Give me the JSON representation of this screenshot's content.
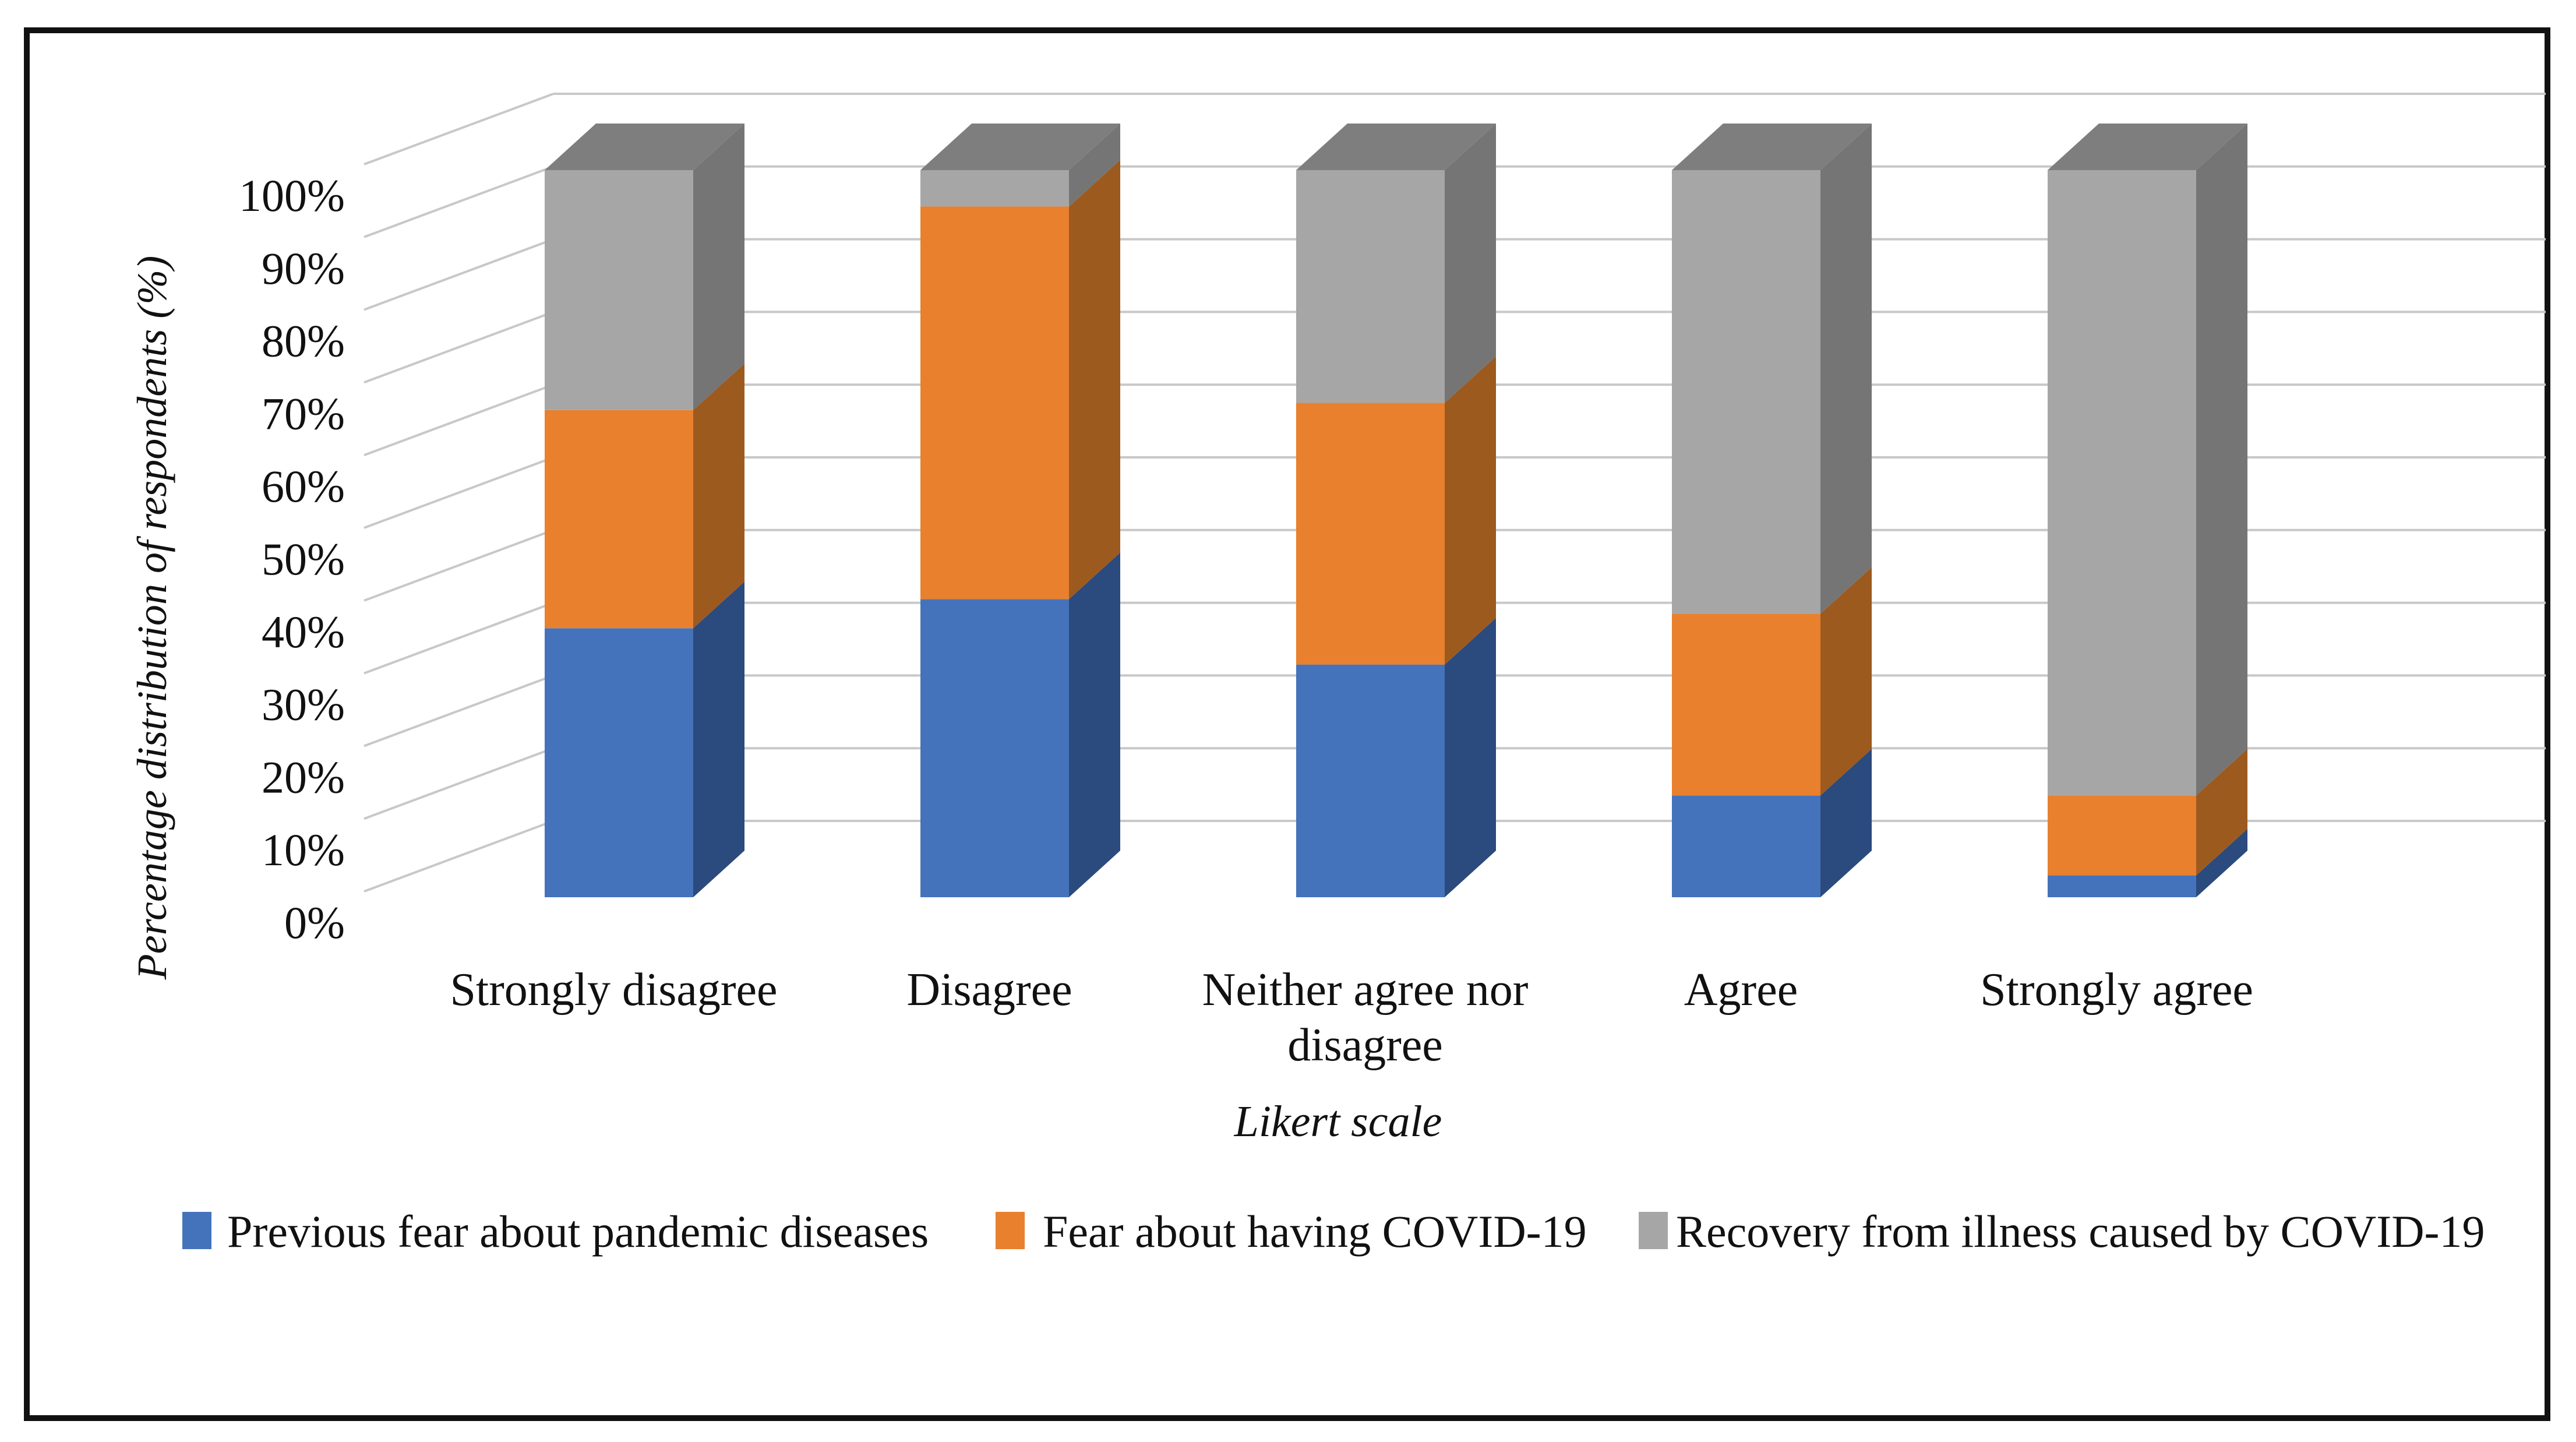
{
  "chart_data": {
    "type": "bar",
    "subtype": "3d-stacked-percent-column",
    "title": "",
    "categories": [
      "Strongly disagree",
      "Disagree",
      "Neither agree nor disagree",
      "Agree",
      "Strongly agree"
    ],
    "category_lines": [
      [
        "Strongly disagree"
      ],
      [
        "Disagree"
      ],
      [
        "Neither agree nor",
        "disagree"
      ],
      [
        "Agree"
      ],
      [
        "Strongly agree"
      ]
    ],
    "series": [
      {
        "name": "Previous fear about pandemic diseases",
        "values": [
          37,
          41,
          32,
          14,
          3
        ],
        "color": "#4573BB",
        "side_color": "#2B4A7D"
      },
      {
        "name": "Fear about having COVID-19",
        "values": [
          30,
          54,
          36,
          25,
          11
        ],
        "color": "#E8802E",
        "side_color": "#9C5A1F"
      },
      {
        "name": "Recovery from illness caused by COVID-19",
        "values": [
          33,
          5,
          32,
          61,
          86
        ],
        "color": "#A6A6A6",
        "side_color": "#757575",
        "top_color": "#7E7E7E"
      }
    ],
    "xlabel": "Likert scale",
    "ylabel": "Percentage distribution of respondents (%)",
    "y_ticks": [
      "0%",
      "10%",
      "20%",
      "30%",
      "40%",
      "50%",
      "60%",
      "70%",
      "80%",
      "90%",
      "100%"
    ],
    "ylim": [
      0,
      100
    ],
    "y_tick_step": 10,
    "grid": true,
    "legend_position": "bottom"
  },
  "colors": {
    "gridline": "#C8C8C8",
    "frame_border": "#111111",
    "background": "#FFFFFF",
    "text": "#111111"
  }
}
